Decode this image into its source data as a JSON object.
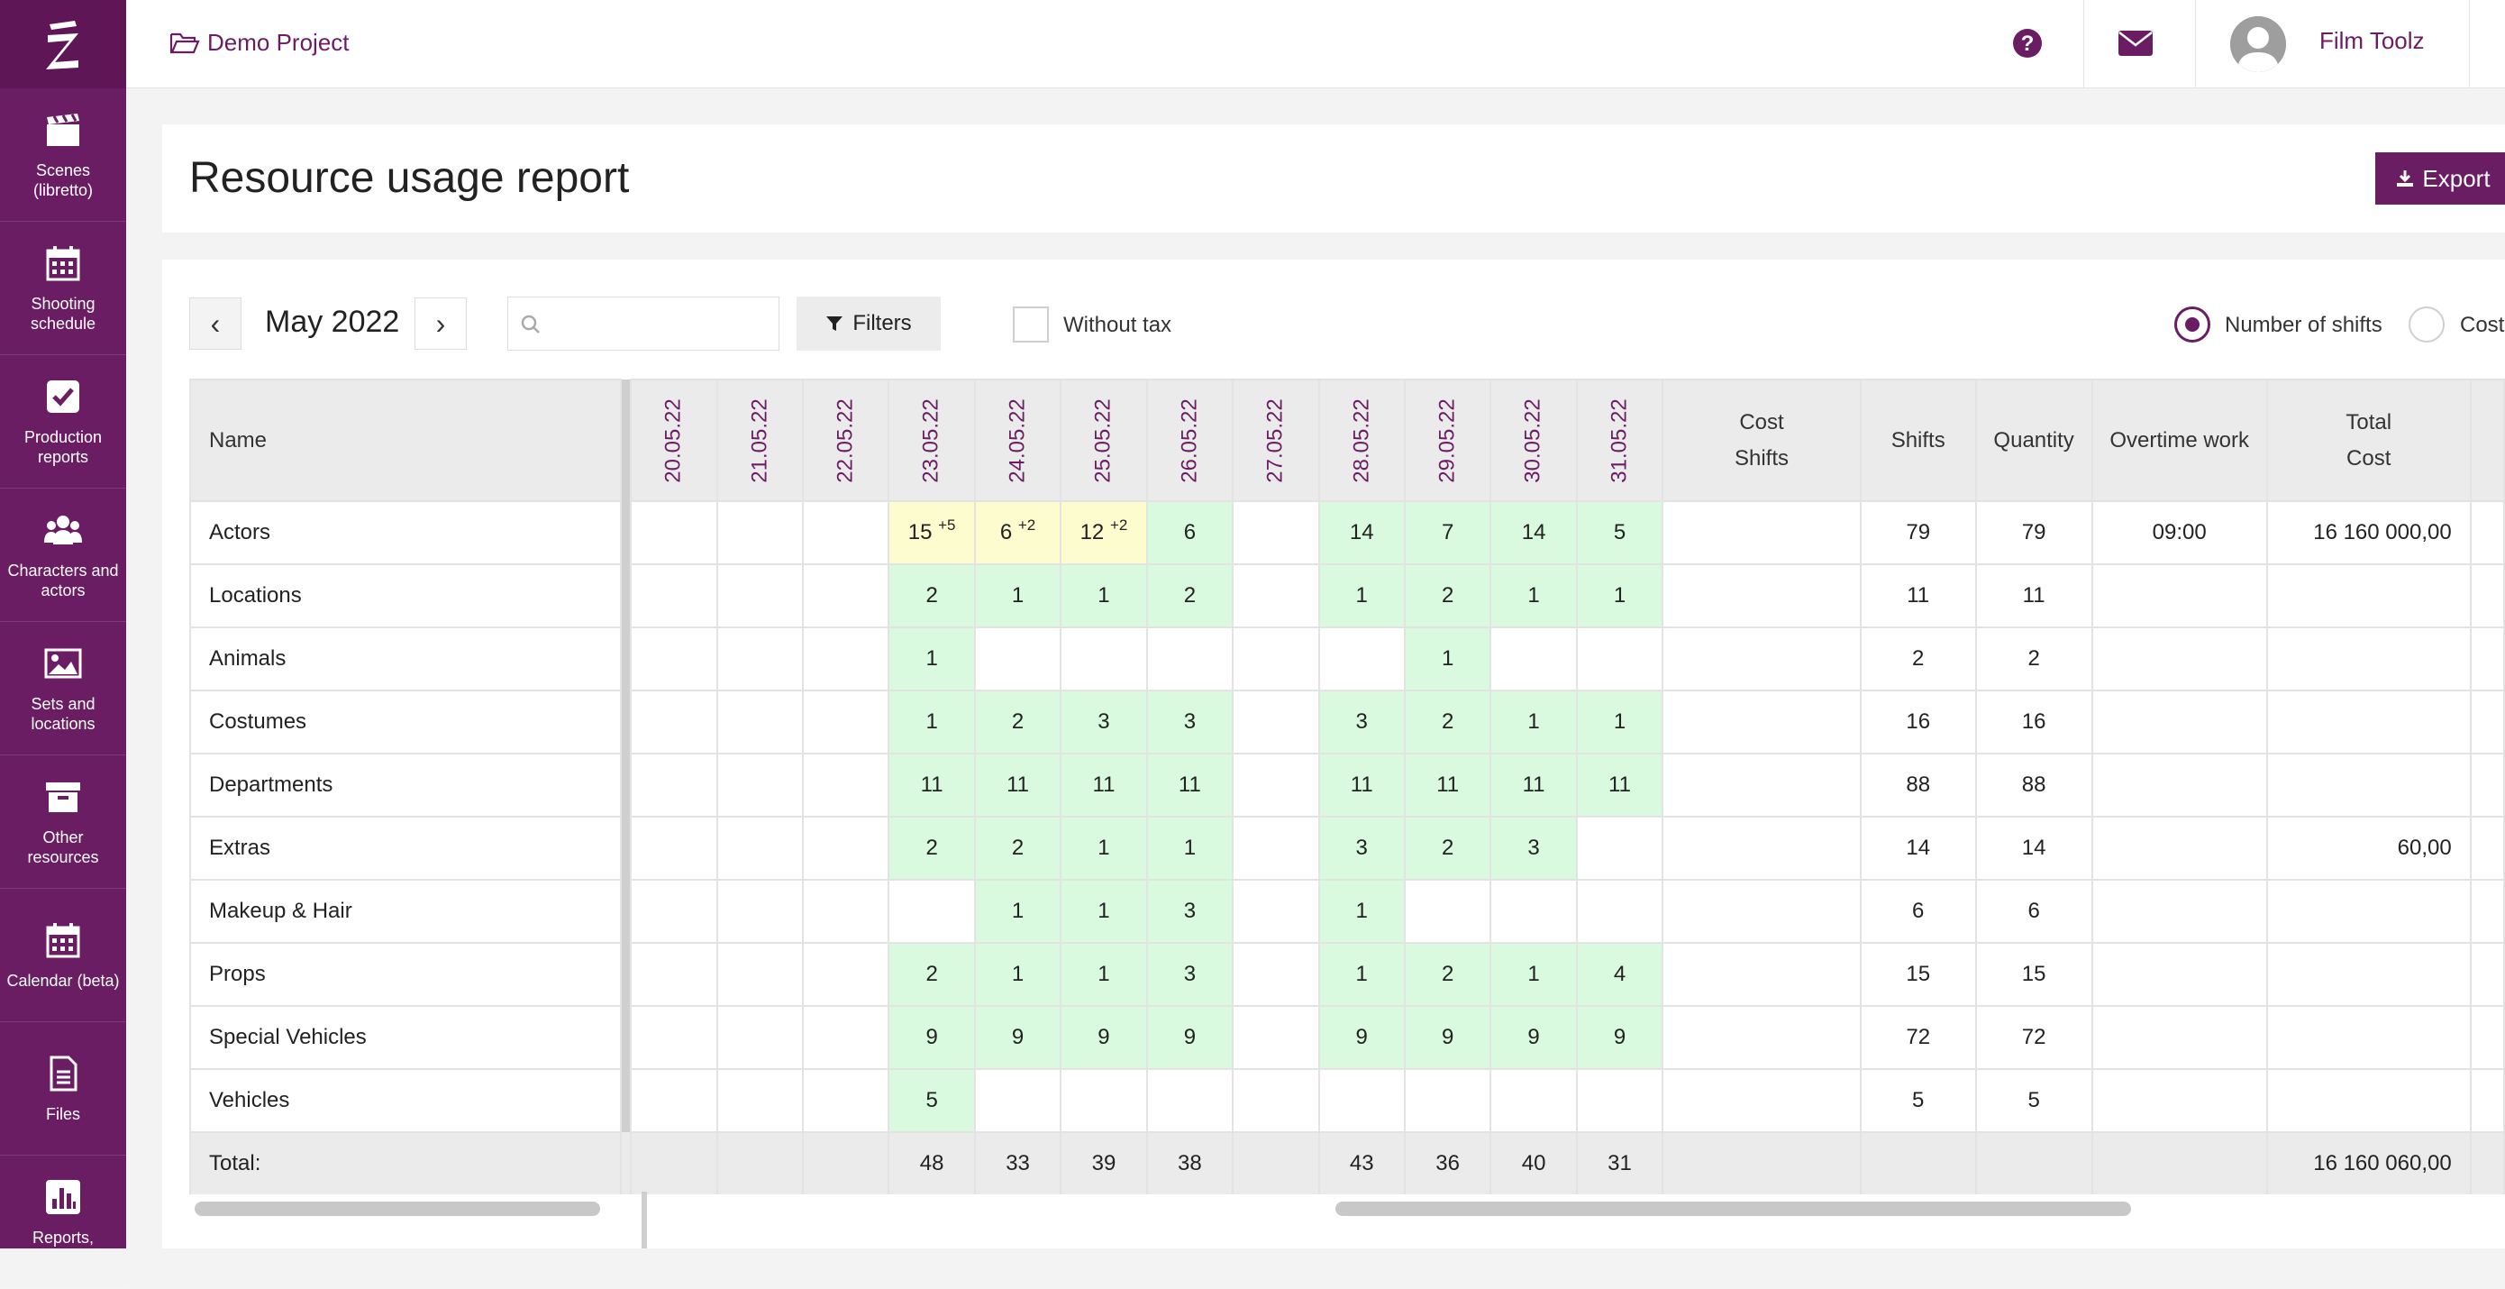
{
  "brand": {
    "accent": "#6b1d63",
    "highlight_green": "#d9fadf",
    "highlight_yellow": "#fcfcce"
  },
  "sidebar": {
    "logo": "Z",
    "items": [
      {
        "label": "Scenes (libretto)",
        "icon": "clapperboard-icon"
      },
      {
        "label": "Shooting schedule",
        "icon": "calendar-icon"
      },
      {
        "label": "Production reports",
        "icon": "checkbox-icon"
      },
      {
        "label": "Characters and actors",
        "icon": "people-icon"
      },
      {
        "label": "Sets and locations",
        "icon": "image-icon"
      },
      {
        "label": "Other resources",
        "icon": "archive-box-icon"
      },
      {
        "label": "Calendar (beta)",
        "icon": "calendar-grid-icon"
      },
      {
        "label": "Files",
        "icon": "file-icon"
      },
      {
        "label": "Reports,",
        "icon": "bar-chart-icon"
      }
    ]
  },
  "header": {
    "project": "Demo Project",
    "user": "Film Toolz"
  },
  "page": {
    "title": "Resource usage report",
    "export_label": "Export"
  },
  "toolbar": {
    "month": "May 2022",
    "prev": "‹",
    "next": "›",
    "search_placeholder": "",
    "filters_label": "Filters",
    "without_tax_label": "Without tax",
    "mode_shifts_label": "Number of shifts",
    "mode_cost_label": "Cost",
    "selected_mode": "Number of shifts"
  },
  "table": {
    "name_header": "Name",
    "dates": [
      "20.05.22",
      "21.05.22",
      "22.05.22",
      "23.05.22",
      "24.05.22",
      "25.05.22",
      "26.05.22",
      "27.05.22",
      "28.05.22",
      "29.05.22",
      "30.05.22",
      "31.05.22"
    ],
    "summary_headers": {
      "cost_shifts_1": "Cost",
      "cost_shifts_2": "Shifts",
      "shifts": "Shifts",
      "quantity": "Quantity",
      "overtime": "Overtime work",
      "total_cost_1": "Total",
      "total_cost_2": "Cost"
    },
    "rows": [
      {
        "name": "Actors",
        "shifts": "79",
        "quantity": "79",
        "overtime": "09:00",
        "total_cost": "16 160 000,00"
      },
      {
        "name": "Locations",
        "shifts": "11",
        "quantity": "11",
        "overtime": "",
        "total_cost": ""
      },
      {
        "name": "Animals",
        "shifts": "2",
        "quantity": "2",
        "overtime": "",
        "total_cost": ""
      },
      {
        "name": "Costumes",
        "shifts": "16",
        "quantity": "16",
        "overtime": "",
        "total_cost": ""
      },
      {
        "name": "Departments",
        "shifts": "88",
        "quantity": "88",
        "overtime": "",
        "total_cost": ""
      },
      {
        "name": "Extras",
        "shifts": "14",
        "quantity": "14",
        "overtime": "",
        "total_cost": "60,00"
      },
      {
        "name": "Makeup & Hair",
        "shifts": "6",
        "quantity": "6",
        "overtime": "",
        "total_cost": ""
      },
      {
        "name": "Props",
        "shifts": "15",
        "quantity": "15",
        "overtime": "",
        "total_cost": ""
      },
      {
        "name": "Special Vehicles",
        "shifts": "72",
        "quantity": "72",
        "overtime": "",
        "total_cost": ""
      },
      {
        "name": "Vehicles",
        "shifts": "5",
        "quantity": "5",
        "overtime": "",
        "total_cost": ""
      }
    ],
    "cells": [
      [
        "",
        "",
        "",
        "15",
        "6",
        "12",
        "6",
        "",
        "14",
        "7",
        "14",
        "5"
      ],
      [
        "",
        "",
        "",
        "2",
        "1",
        "1",
        "2",
        "",
        "1",
        "2",
        "1",
        "1"
      ],
      [
        "",
        "",
        "",
        "1",
        "",
        "",
        "",
        "",
        "",
        "1",
        "",
        ""
      ],
      [
        "",
        "",
        "",
        "1",
        "2",
        "3",
        "3",
        "",
        "3",
        "2",
        "1",
        "1"
      ],
      [
        "",
        "",
        "",
        "11",
        "11",
        "11",
        "11",
        "",
        "11",
        "11",
        "11",
        "11"
      ],
      [
        "",
        "",
        "",
        "2",
        "2",
        "1",
        "1",
        "",
        "3",
        "2",
        "3",
        ""
      ],
      [
        "",
        "",
        "",
        "",
        "1",
        "1",
        "3",
        "",
        "1",
        "",
        "",
        ""
      ],
      [
        "",
        "",
        "",
        "2",
        "1",
        "1",
        "3",
        "",
        "1",
        "2",
        "1",
        "4"
      ],
      [
        "",
        "",
        "",
        "9",
        "9",
        "9",
        "9",
        "",
        "9",
        "9",
        "9",
        "9"
      ],
      [
        "",
        "",
        "",
        "5",
        "",
        "",
        "",
        "",
        "",
        "",
        "",
        ""
      ]
    ],
    "extras": {
      "r0c3": "+5",
      "r0c4": "+2",
      "r0c5": "+2"
    },
    "total": {
      "label": "Total:",
      "values": [
        "",
        "",
        "",
        "48",
        "33",
        "39",
        "38",
        "",
        "43",
        "36",
        "40",
        "31"
      ],
      "total_cost": "16 160 060,00"
    }
  }
}
